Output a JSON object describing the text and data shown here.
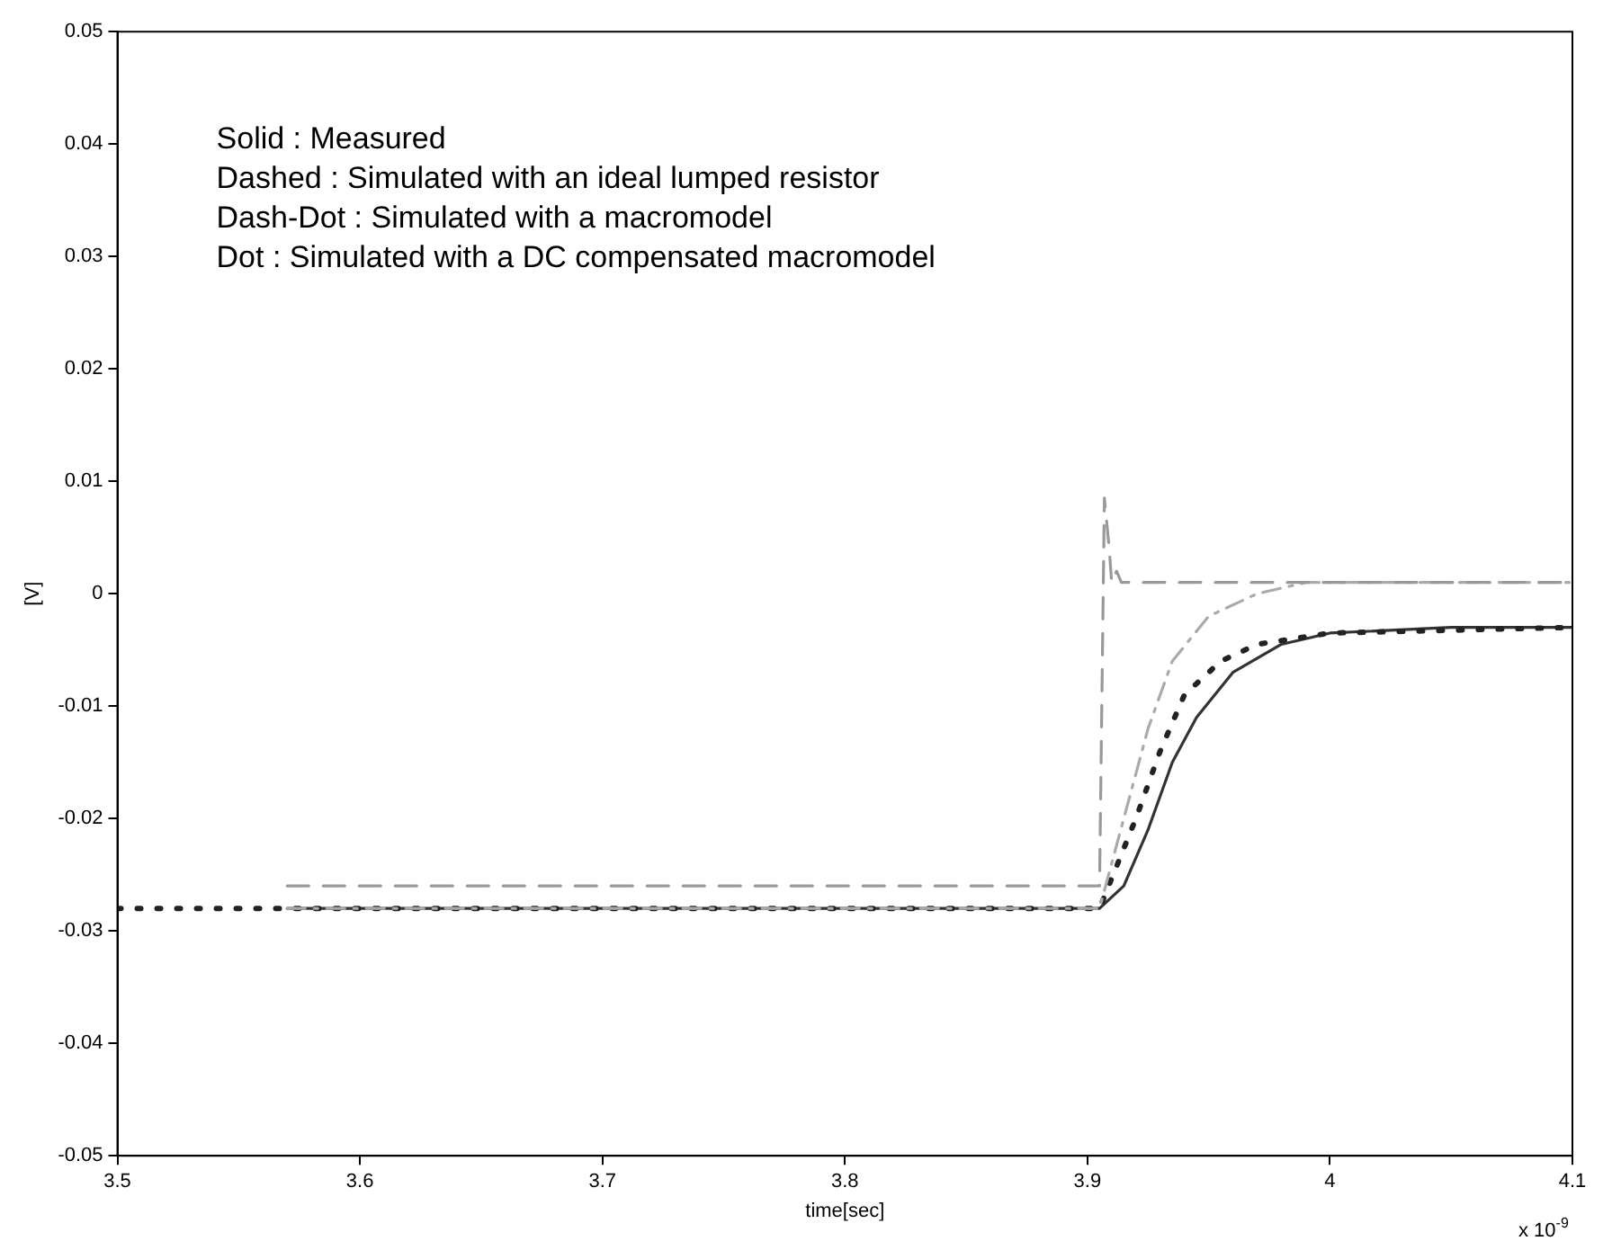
{
  "chart_data": {
    "type": "line",
    "xlabel": "time[sec]",
    "ylabel": "[V]",
    "xlim": [
      3.5,
      4.1
    ],
    "xticks": [
      3.5,
      3.6,
      3.7,
      3.8,
      3.9,
      4,
      4.1
    ],
    "ylim": [
      -0.05,
      0.05
    ],
    "yticks": [
      -0.05,
      -0.04,
      -0.03,
      -0.02,
      -0.01,
      0,
      0.01,
      0.02,
      0.03,
      0.04,
      0.05
    ],
    "grid": false,
    "legend": false,
    "marker": "none",
    "annotations": [
      "Solid : Measured",
      "Dashed : Simulated with an ideal lumped resistor",
      "Dash-Dot : Simulated with a macromodel",
      "Dot : Simulated with a DC compensated macromodel",
      "x 10$^{-9}$"
    ],
    "series": [
      {
        "color": "#999999",
        "line_style": "dashed",
        "x": [
          3.57,
          3.905,
          3.907,
          3.909,
          3.91,
          3.912,
          3.914,
          4.1
        ],
        "values": [
          -0.026,
          -0.026,
          0.0085,
          0.004,
          0.001,
          0.002,
          0.001,
          0.001
        ]
      },
      {
        "color": "#aaaaaa",
        "line_style": "dashdot",
        "x": [
          3.57,
          3.905,
          3.915,
          3.925,
          3.935,
          3.95,
          3.97,
          3.99,
          4.1
        ],
        "values": [
          -0.028,
          -0.028,
          -0.02,
          -0.012,
          -0.006,
          -0.002,
          0,
          0.001,
          0.001
        ]
      },
      {
        "color": "#222222",
        "line_style": "dotted",
        "x": [
          3.5,
          3.905,
          3.92,
          3.93,
          3.94,
          3.955,
          3.97,
          4.0,
          4.1
        ],
        "values": [
          -0.028,
          -0.028,
          -0.02,
          -0.014,
          -0.009,
          -0.006,
          -0.0045,
          -0.0035,
          -0.003
        ]
      },
      {
        "color": "#333333",
        "line_style": "solid",
        "x": [
          3.57,
          3.905,
          3.915,
          3.925,
          3.935,
          3.945,
          3.96,
          3.98,
          4.0,
          4.05,
          4.1
        ],
        "values": [
          -0.028,
          -0.028,
          -0.026,
          -0.021,
          -0.015,
          -0.011,
          -0.007,
          -0.0045,
          -0.0035,
          -0.003,
          -0.003
        ]
      }
    ]
  }
}
